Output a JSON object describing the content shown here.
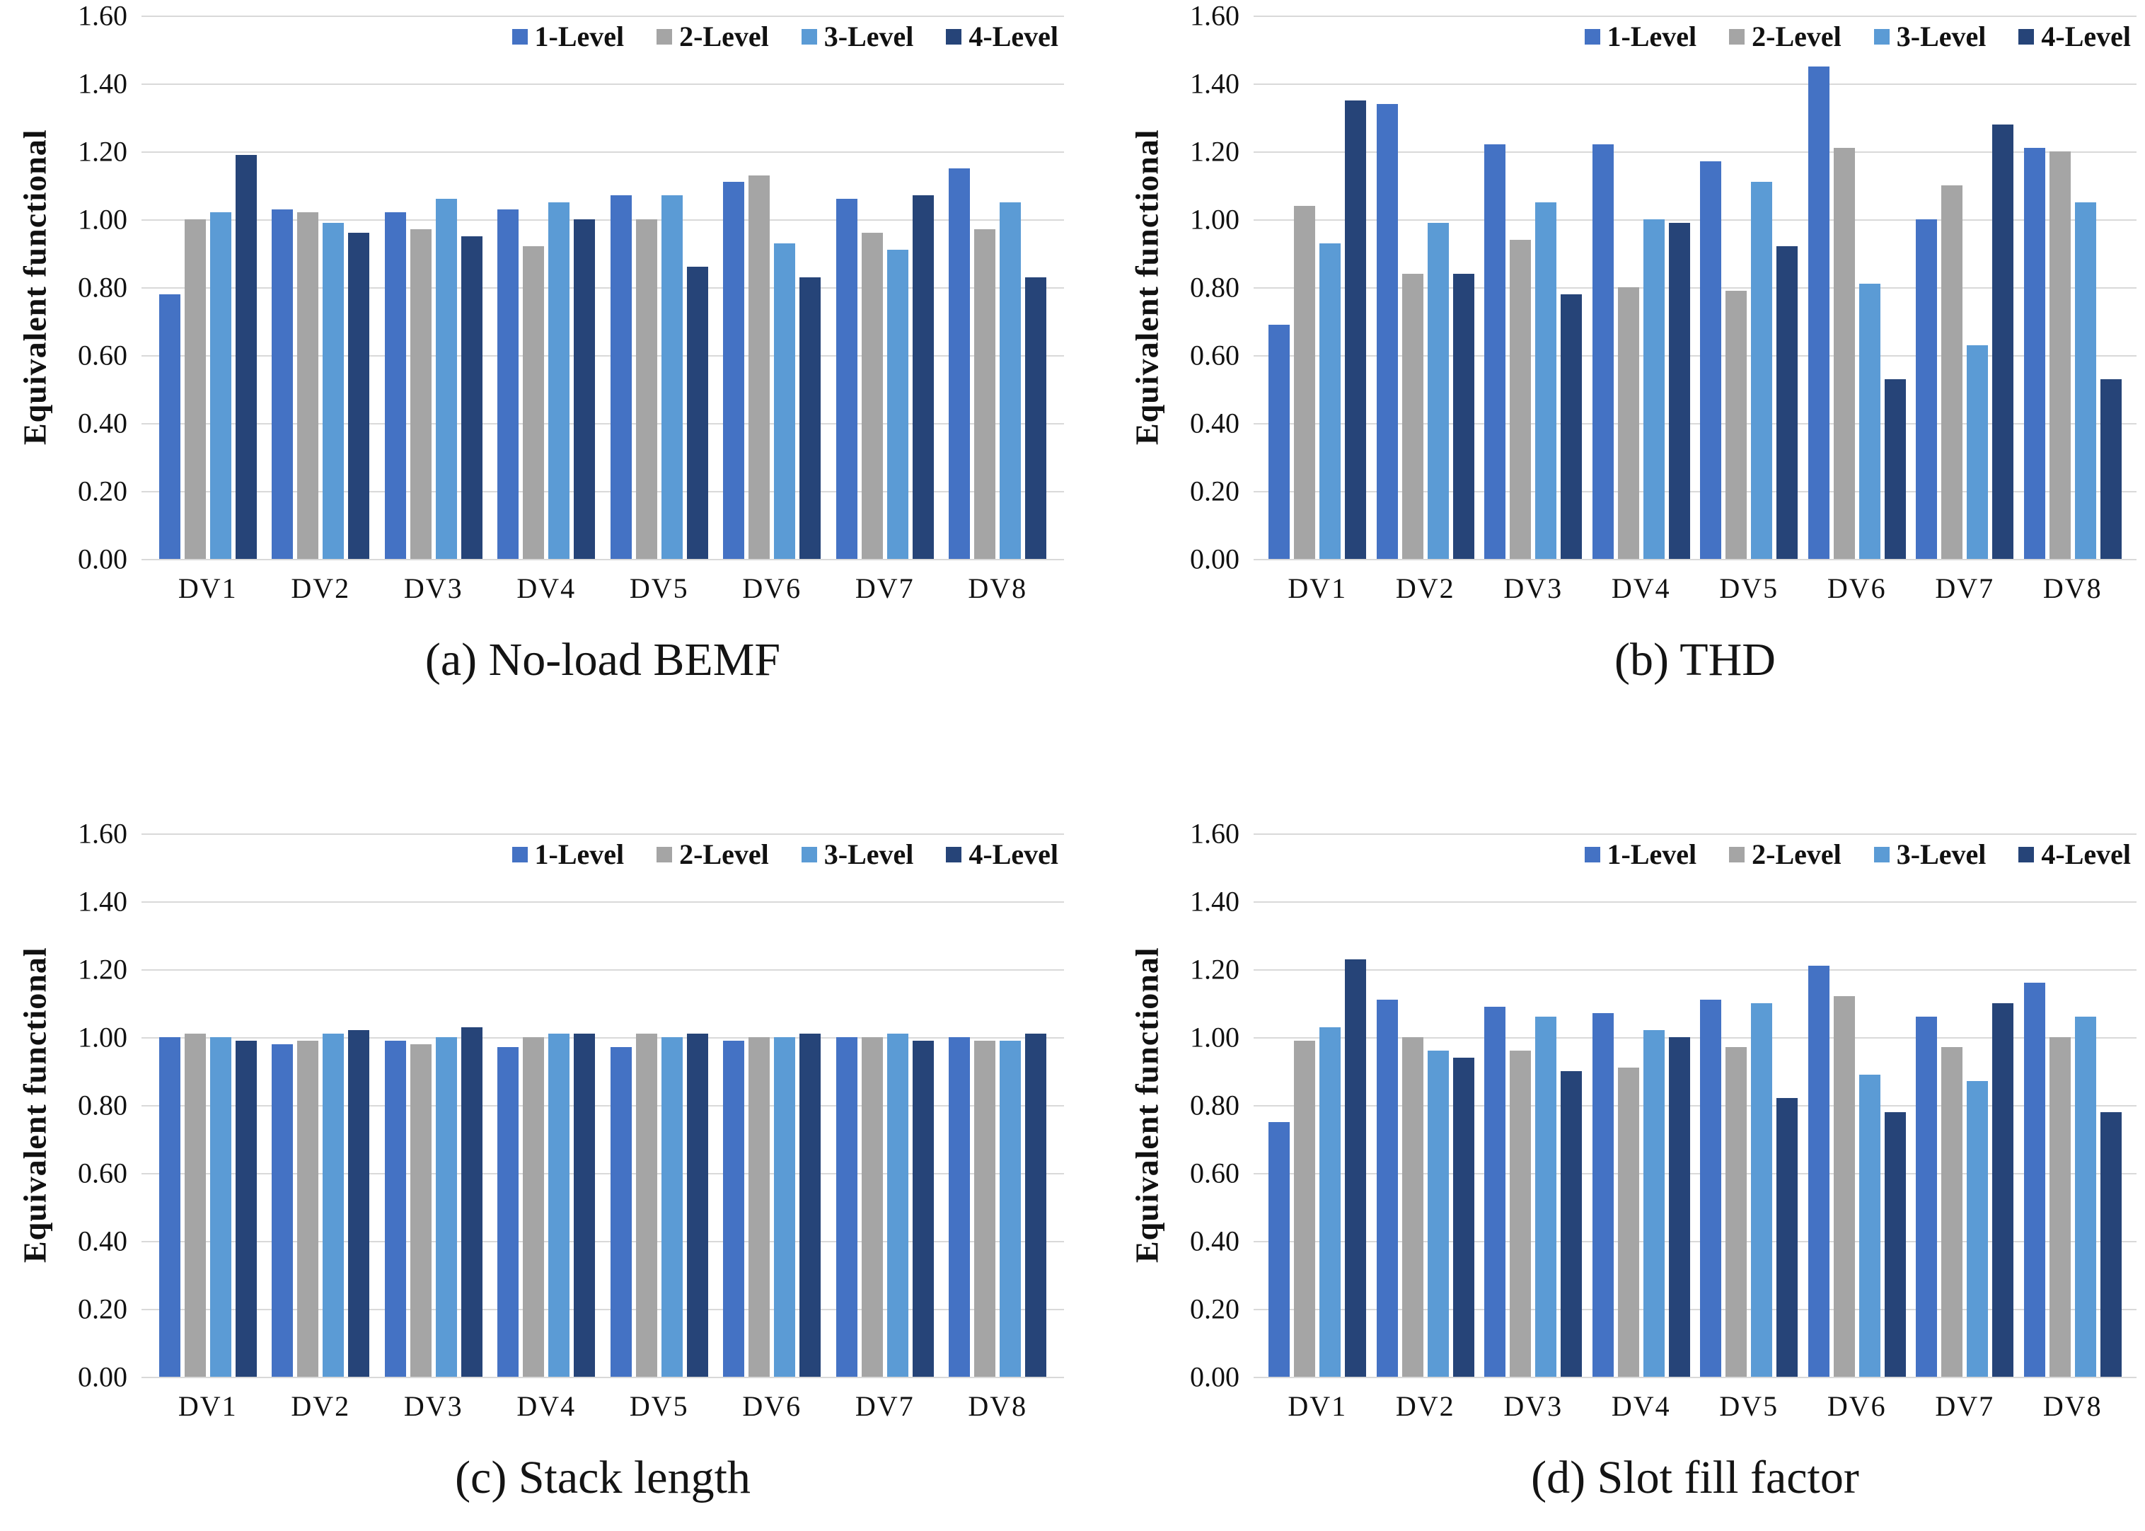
{
  "page_background": "#ffffff",
  "palette": [
    "#4472C4",
    "#A5A5A5",
    "#5B9BD5",
    "#264478"
  ],
  "gridline_color": "#d9d9d9",
  "axis": {
    "ylabel": "Equivalent functional",
    "ytick_labels": [
      "1.60",
      "1.40",
      "1.20",
      "1.00",
      "0.80",
      "0.60",
      "0.40",
      "0.20",
      "0.00"
    ],
    "ymax": 1.6
  },
  "legend": [
    "1-Level",
    "2-Level",
    "3-Level",
    "4-Level"
  ],
  "chart_data": [
    {
      "type": "bar",
      "title": "(a) No-load BEMF",
      "ylabel": "Equivalent functional",
      "xlabel": "",
      "ylim": [
        0,
        1.6
      ],
      "ytick_step": 0.2,
      "grid": true,
      "legend_position": "top-right",
      "categories": [
        "DV1",
        "DV2",
        "DV3",
        "DV4",
        "DV5",
        "DV6",
        "DV7",
        "DV8"
      ],
      "series": [
        {
          "name": "1-Level",
          "values": [
            0.78,
            1.03,
            1.02,
            1.03,
            1.07,
            1.11,
            1.06,
            1.15
          ]
        },
        {
          "name": "2-Level",
          "values": [
            1.0,
            1.02,
            0.97,
            0.92,
            1.0,
            1.13,
            0.96,
            0.97
          ]
        },
        {
          "name": "3-Level",
          "values": [
            1.02,
            0.99,
            1.06,
            1.05,
            1.07,
            0.93,
            0.91,
            1.05
          ]
        },
        {
          "name": "4-Level",
          "values": [
            1.19,
            0.96,
            0.95,
            1.0,
            0.86,
            0.83,
            1.07,
            0.83
          ]
        }
      ]
    },
    {
      "type": "bar",
      "title": "(b) THD",
      "ylabel": "Equivalent functional",
      "xlabel": "",
      "ylim": [
        0,
        1.6
      ],
      "ytick_step": 0.2,
      "grid": true,
      "legend_position": "top-right",
      "categories": [
        "DV1",
        "DV2",
        "DV3",
        "DV4",
        "DV5",
        "DV6",
        "DV7",
        "DV8"
      ],
      "series": [
        {
          "name": "1-Level",
          "values": [
            0.69,
            1.34,
            1.22,
            1.22,
            1.17,
            1.45,
            1.0,
            1.21
          ]
        },
        {
          "name": "2-Level",
          "values": [
            1.04,
            0.84,
            0.94,
            0.8,
            0.79,
            1.21,
            1.1,
            1.2
          ]
        },
        {
          "name": "3-Level",
          "values": [
            0.93,
            0.99,
            1.05,
            1.0,
            1.11,
            0.81,
            0.63,
            1.05
          ]
        },
        {
          "name": "4-Level",
          "values": [
            1.35,
            0.84,
            0.78,
            0.99,
            0.92,
            0.53,
            1.28,
            0.53
          ]
        }
      ]
    },
    {
      "type": "bar",
      "title": "(c) Stack length",
      "ylabel": "Equivalent functional",
      "xlabel": "",
      "ylim": [
        0,
        1.6
      ],
      "ytick_step": 0.2,
      "grid": true,
      "legend_position": "top-right",
      "categories": [
        "DV1",
        "DV2",
        "DV3",
        "DV4",
        "DV5",
        "DV6",
        "DV7",
        "DV8"
      ],
      "series": [
        {
          "name": "1-Level",
          "values": [
            1.0,
            0.98,
            0.99,
            0.97,
            0.97,
            0.99,
            1.0,
            1.0
          ]
        },
        {
          "name": "2-Level",
          "values": [
            1.01,
            0.99,
            0.98,
            1.0,
            1.01,
            1.0,
            1.0,
            0.99
          ]
        },
        {
          "name": "3-Level",
          "values": [
            1.0,
            1.01,
            1.0,
            1.01,
            1.0,
            1.0,
            1.01,
            0.99
          ]
        },
        {
          "name": "4-Level",
          "values": [
            0.99,
            1.02,
            1.03,
            1.01,
            1.01,
            1.01,
            0.99,
            1.01
          ]
        }
      ]
    },
    {
      "type": "bar",
      "title": "(d) Slot fill factor",
      "ylabel": "Equivalent functional",
      "xlabel": "",
      "ylim": [
        0,
        1.6
      ],
      "ytick_step": 0.2,
      "grid": true,
      "legend_position": "top-right",
      "categories": [
        "DV1",
        "DV2",
        "DV3",
        "DV4",
        "DV5",
        "DV6",
        "DV7",
        "DV8"
      ],
      "series": [
        {
          "name": "1-Level",
          "values": [
            0.75,
            1.11,
            1.09,
            1.07,
            1.11,
            1.21,
            1.06,
            1.16
          ]
        },
        {
          "name": "2-Level",
          "values": [
            0.99,
            1.0,
            0.96,
            0.91,
            0.97,
            1.12,
            0.97,
            1.0
          ]
        },
        {
          "name": "3-Level",
          "values": [
            1.03,
            0.96,
            1.06,
            1.02,
            1.1,
            0.89,
            0.87,
            1.06
          ]
        },
        {
          "name": "4-Level",
          "values": [
            1.23,
            0.94,
            0.9,
            1.0,
            0.82,
            0.78,
            1.1,
            0.78
          ]
        }
      ]
    }
  ]
}
